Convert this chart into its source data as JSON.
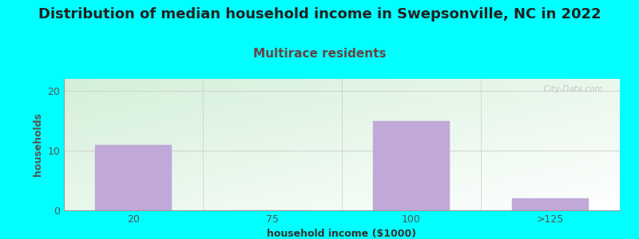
{
  "title": "Distribution of median household income in Swepsonville, NC in 2022",
  "subtitle": "Multirace residents",
  "xlabel": "household income ($1000)",
  "ylabel": "households",
  "bg_color": "#00FFFF",
  "bar_color": "#c0a8d8",
  "bar_edge_color": "#c0a8d8",
  "categories": [
    "20",
    "75",
    "100",
    ">125"
  ],
  "values": [
    11,
    0,
    15,
    2
  ],
  "ylim": [
    0,
    22
  ],
  "yticks": [
    0,
    10,
    20
  ],
  "title_fontsize": 13,
  "subtitle_fontsize": 11,
  "subtitle_color": "#664444",
  "axis_label_fontsize": 9,
  "tick_fontsize": 9,
  "watermark": "  City-Data.com",
  "grad_color_topleft": "#d8eedd",
  "grad_color_bottomright": "#f8fff8"
}
